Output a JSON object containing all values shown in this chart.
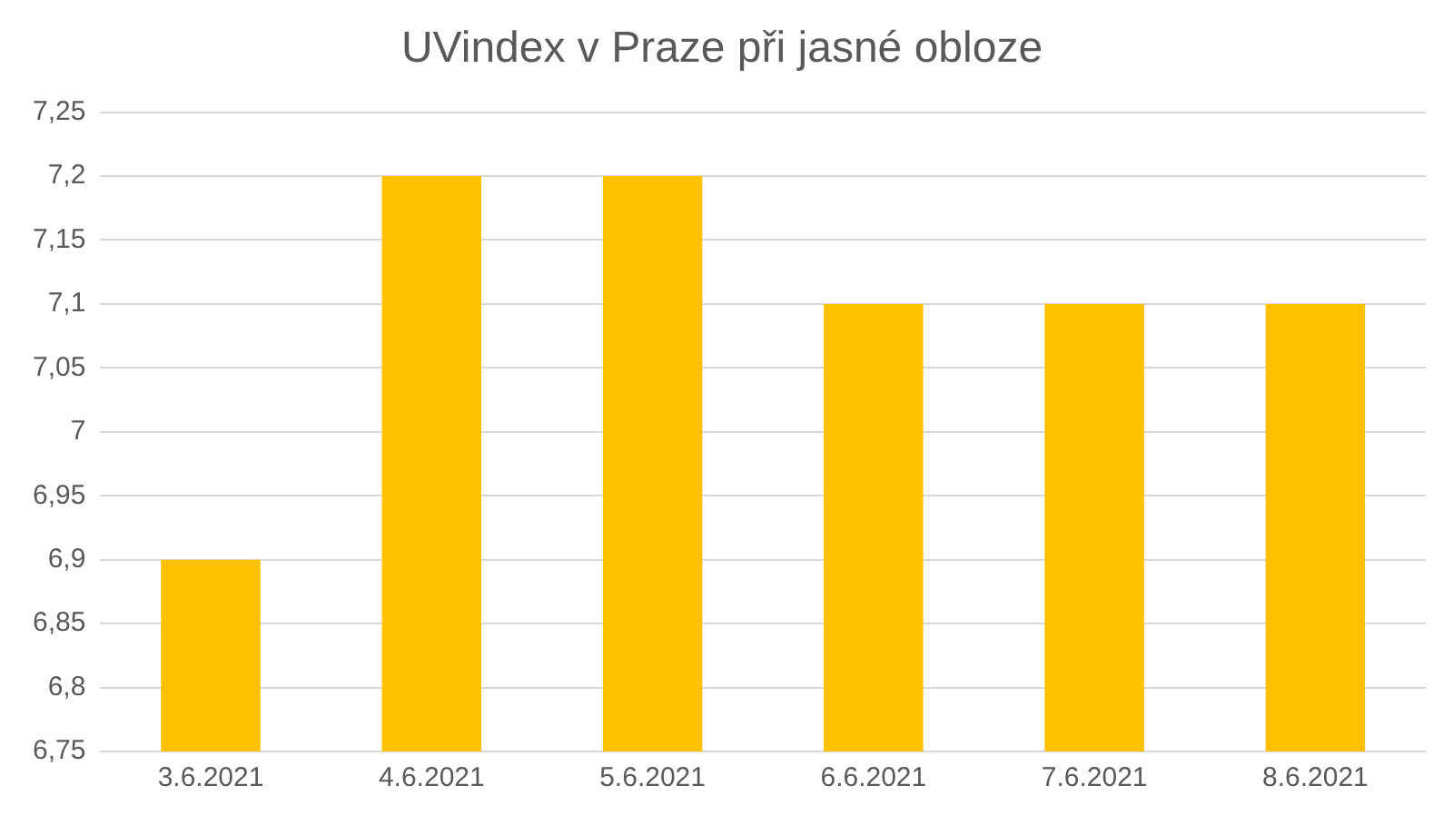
{
  "chart_data": {
    "type": "bar",
    "title": "UVindex v Praze při jasné obloze",
    "categories": [
      "3.6.2021",
      "4.6.2021",
      "5.6.2021",
      "6.6.2021",
      "7.6.2021",
      "8.6.2021"
    ],
    "values": [
      6.9,
      7.2,
      7.2,
      7.1,
      7.1,
      7.1
    ],
    "color": "#ffc000",
    "ylim": [
      6.75,
      7.25
    ],
    "yticks": [
      {
        "value": 6.75,
        "label": "6,75"
      },
      {
        "value": 6.8,
        "label": "6,8"
      },
      {
        "value": 6.85,
        "label": "6,85"
      },
      {
        "value": 6.9,
        "label": "6,9"
      },
      {
        "value": 6.95,
        "label": "6,95"
      },
      {
        "value": 7,
        "label": "7"
      },
      {
        "value": 7.05,
        "label": "7,05"
      },
      {
        "value": 7.1,
        "label": "7,1"
      },
      {
        "value": 7.15,
        "label": "7,15"
      },
      {
        "value": 7.2,
        "label": "7,2"
      },
      {
        "value": 7.25,
        "label": "7,25"
      }
    ],
    "grid": "y",
    "legend": false
  }
}
